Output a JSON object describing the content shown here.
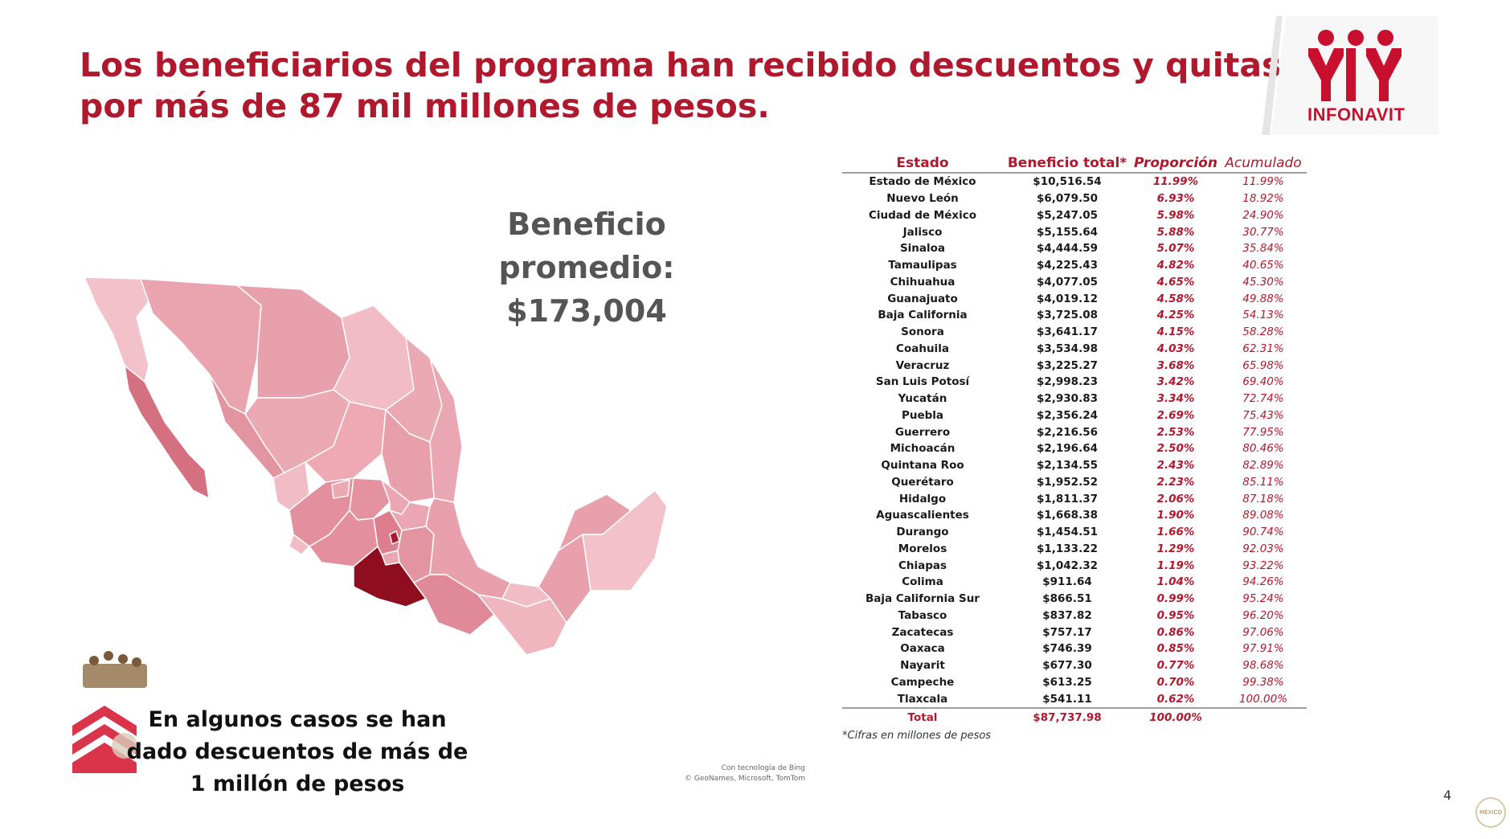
{
  "slide": {
    "title_line1": "Los beneficiarios del programa han recibido descuentos y quitas",
    "title_line2": "por más de 87 mil millones de pesos.",
    "logo_text": "INFONAVIT",
    "average_label": "Beneficio promedio:",
    "average_value": "$173,004",
    "bottom_note_line1": "En algunos casos se han",
    "bottom_note_line2": "dado descuentos de más de",
    "bottom_note_line3": "1 millón de pesos",
    "map_credit_line1": "Con tecnología de Bing",
    "map_credit_line2": "© GeoNames, Microsoft, TomTom",
    "page_number": "4",
    "seal_text": "MÉXICO"
  },
  "table": {
    "headers": [
      "Estado",
      "Beneficio total*",
      "Proporción",
      "Acumulado"
    ],
    "rows": [
      [
        "Estado de México",
        "$10,516.54",
        "11.99%",
        "11.99%"
      ],
      [
        "Nuevo León",
        "$6,079.50",
        "6.93%",
        "18.92%"
      ],
      [
        "Ciudad de México",
        "$5,247.05",
        "5.98%",
        "24.90%"
      ],
      [
        "Jalisco",
        "$5,155.64",
        "5.88%",
        "30.77%"
      ],
      [
        "Sinaloa",
        "$4,444.59",
        "5.07%",
        "35.84%"
      ],
      [
        "Tamaulipas",
        "$4,225.43",
        "4.82%",
        "40.65%"
      ],
      [
        "Chihuahua",
        "$4,077.05",
        "4.65%",
        "45.30%"
      ],
      [
        "Guanajuato",
        "$4,019.12",
        "4.58%",
        "49.88%"
      ],
      [
        "Baja California",
        "$3,725.08",
        "4.25%",
        "54.13%"
      ],
      [
        "Sonora",
        "$3,641.17",
        "4.15%",
        "58.28%"
      ],
      [
        "Coahuila",
        "$3,534.98",
        "4.03%",
        "62.31%"
      ],
      [
        "Veracruz",
        "$3,225.27",
        "3.68%",
        "65.98%"
      ],
      [
        "San Luis Potosí",
        "$2,998.23",
        "3.42%",
        "69.40%"
      ],
      [
        "Yucatán",
        "$2,930.83",
        "3.34%",
        "72.74%"
      ],
      [
        "Puebla",
        "$2,356.24",
        "2.69%",
        "75.43%"
      ],
      [
        "Guerrero",
        "$2,216.56",
        "2.53%",
        "77.95%"
      ],
      [
        "Michoacán",
        "$2,196.64",
        "2.50%",
        "80.46%"
      ],
      [
        "Quintana Roo",
        "$2,134.55",
        "2.43%",
        "82.89%"
      ],
      [
        "Querétaro",
        "$1,952.52",
        "2.23%",
        "85.11%"
      ],
      [
        "Hidalgo",
        "$1,811.37",
        "2.06%",
        "87.18%"
      ],
      [
        "Aguascalientes",
        "$1,668.38",
        "1.90%",
        "89.08%"
      ],
      [
        "Durango",
        "$1,454.51",
        "1.66%",
        "90.74%"
      ],
      [
        "Morelos",
        "$1,133.22",
        "1.29%",
        "92.03%"
      ],
      [
        "Chiapas",
        "$1,042.32",
        "1.19%",
        "93.22%"
      ],
      [
        "Colima",
        "$911.64",
        "1.04%",
        "94.26%"
      ],
      [
        "Baja California Sur",
        "$866.51",
        "0.99%",
        "95.24%"
      ],
      [
        "Tabasco",
        "$837.82",
        "0.95%",
        "96.20%"
      ],
      [
        "Zacatecas",
        "$757.17",
        "0.86%",
        "97.06%"
      ],
      [
        "Oaxaca",
        "$746.39",
        "0.85%",
        "97.91%"
      ],
      [
        "Nayarit",
        "$677.30",
        "0.77%",
        "98.68%"
      ],
      [
        "Campeche",
        "$613.25",
        "0.70%",
        "99.38%"
      ],
      [
        "Tlaxcala",
        "$541.11",
        "0.62%",
        "100.00%"
      ]
    ],
    "total": [
      "Total",
      "$87,737.98",
      "100.00%"
    ],
    "footnote": "*Cifras en millones de pesos"
  },
  "colors": {
    "title": "#b0182d",
    "map_light": "#f3c1ca",
    "map_mid": "#e6919f",
    "map_strong": "#d4707f",
    "map_darkest": "#8e0e1f"
  }
}
